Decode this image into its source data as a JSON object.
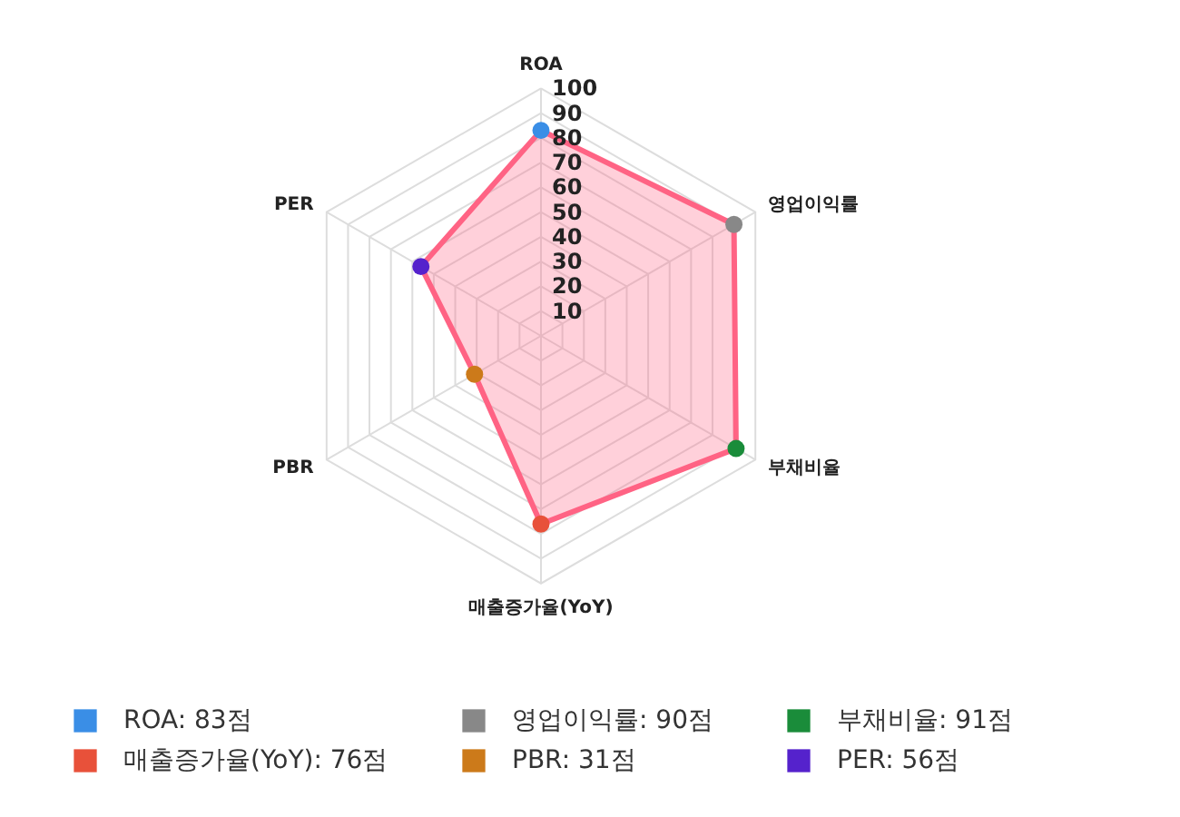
{
  "chart_data": {
    "type": "radar",
    "categories": [
      "ROA",
      "영업이익률",
      "부채비율",
      "매출증가율(YoY)",
      "PBR",
      "PER"
    ],
    "series": [
      {
        "color": "#ff6384",
        "values": [
          83,
          90,
          91,
          76,
          31,
          56
        ],
        "colors": [
          "#3a8ee6",
          "#888888",
          "#1a8c3a",
          "#e8513a",
          "#cc7a1a",
          "#5522cc"
        ]
      }
    ],
    "annotations": [
      "ROA: 83점",
      "영업이익률: 90점",
      "부채비율: 91점",
      "매출증가율(YoY): 76점",
      "PBR: 31점",
      "PER: 56점"
    ],
    "ylim": [
      0,
      100
    ],
    "yticks": [
      10,
      20,
      30,
      40,
      50,
      60,
      70,
      80,
      90,
      100
    ],
    "grid": true,
    "marker": "circle"
  }
}
